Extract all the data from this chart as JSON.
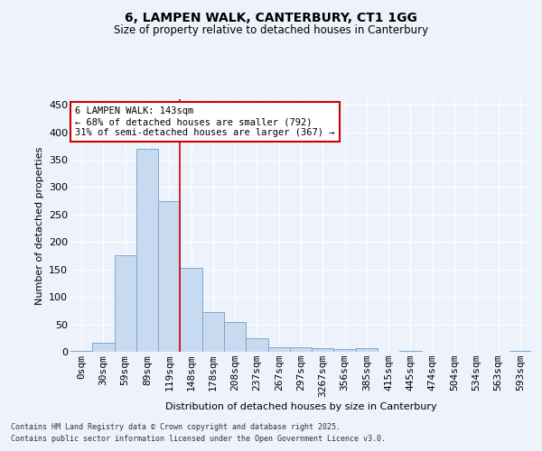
{
  "title1": "6, LAMPEN WALK, CANTERBURY, CT1 1GG",
  "title2": "Size of property relative to detached houses in Canterbury",
  "xlabel": "Distribution of detached houses by size in Canterbury",
  "ylabel": "Number of detached properties",
  "bar_color": "#c8daf0",
  "bar_edge_color": "#7aaad0",
  "bg_color": "#eef2fa",
  "grid_color": "#ffffff",
  "categories": [
    "0sqm",
    "30sqm",
    "59sqm",
    "89sqm",
    "119sqm",
    "148sqm",
    "178sqm",
    "208sqm",
    "237sqm",
    "267sqm",
    "297sqm",
    "3267sqm",
    "356sqm",
    "385sqm",
    "415sqm",
    "445sqm",
    "474sqm",
    "504sqm",
    "534sqm",
    "563sqm",
    "593sqm"
  ],
  "values": [
    2,
    17,
    175,
    370,
    275,
    152,
    72,
    54,
    24,
    9,
    9,
    7,
    5,
    6,
    0,
    1,
    0,
    0,
    0,
    0,
    2
  ],
  "vline_x": 4.5,
  "vline_color": "#cc0000",
  "annotation_text": "6 LAMPEN WALK: 143sqm\n← 68% of detached houses are smaller (792)\n31% of semi-detached houses are larger (367) →",
  "annotation_box_color": "#ffffff",
  "annotation_box_edge": "#cc0000",
  "footer1": "Contains HM Land Registry data © Crown copyright and database right 2025.",
  "footer2": "Contains public sector information licensed under the Open Government Licence v3.0.",
  "ylim": [
    0,
    460
  ],
  "yticks": [
    0,
    50,
    100,
    150,
    200,
    250,
    300,
    350,
    400,
    450
  ]
}
